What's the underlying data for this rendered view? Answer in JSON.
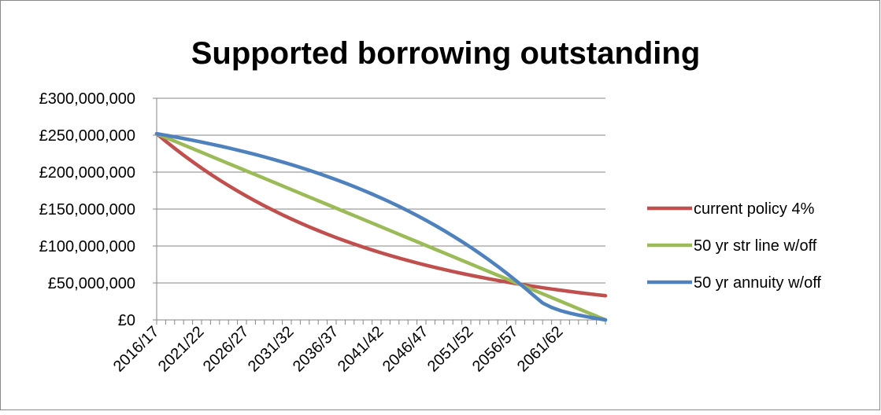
{
  "chart_data": {
    "type": "line",
    "title": "Supported borrowing outstanding",
    "xlabel": "",
    "ylabel": "",
    "ylim": [
      0,
      300000000
    ],
    "y_ticks": [
      {
        "value": 0,
        "label": "£0"
      },
      {
        "value": 50000000,
        "label": "£50,000,000"
      },
      {
        "value": 100000000,
        "label": "£100,000,000"
      },
      {
        "value": 150000000,
        "label": "£150,000,000"
      },
      {
        "value": 200000000,
        "label": "£200,000,000"
      },
      {
        "value": 250000000,
        "label": "£250,000,000"
      },
      {
        "value": 300000000,
        "label": "£300,000,000"
      }
    ],
    "categories": [
      "2016/17",
      "2017/18",
      "2018/19",
      "2019/20",
      "2020/21",
      "2021/22",
      "2022/23",
      "2023/24",
      "2024/25",
      "2025/26",
      "2026/27",
      "2027/28",
      "2028/29",
      "2029/30",
      "2030/31",
      "2031/32",
      "2032/33",
      "2033/34",
      "2034/35",
      "2035/36",
      "2036/37",
      "2037/38",
      "2038/39",
      "2039/40",
      "2040/41",
      "2041/42",
      "2042/43",
      "2043/44",
      "2044/45",
      "2045/46",
      "2046/47",
      "2047/48",
      "2048/49",
      "2049/50",
      "2050/51",
      "2051/52",
      "2052/53",
      "2053/54",
      "2054/55",
      "2055/56",
      "2056/57",
      "2057/58",
      "2058/59",
      "2059/60",
      "2060/61",
      "2061/62",
      "2062/63",
      "2063/64",
      "2064/65",
      "2065/66",
      "2066/67"
    ],
    "x_tick_labels": [
      "2016/17",
      "2021/22",
      "2026/27",
      "2031/32",
      "2036/37",
      "2041/42",
      "2046/47",
      "2051/52",
      "2056/57",
      "2061/62"
    ],
    "grid": true,
    "legend_position": "right",
    "series": [
      {
        "name": "current policy 4%",
        "color": "#C0504D",
        "values": [
          252000000,
          241920000,
          232243200,
          222953472,
          214035333,
          205473920,
          197254963,
          189364764,
          181790173,
          174518566,
          167537823,
          160836310,
          154402858,
          148226744,
          142297674,
          136605767,
          131141536,
          125895875,
          120860040,
          116025639,
          111384613,
          106929228,
          102652059,
          98545976,
          94604137,
          90819971,
          87187173,
          83699686,
          80351699,
          77137631,
          74052126,
          71090041,
          68246439,
          65516581,
          62895918,
          60380081,
          57964878,
          55646283,
          53420432,
          51283614,
          49232270,
          47262979,
          45372460,
          43557562,
          41815259,
          40142649,
          38536943,
          36995465,
          35515646,
          34095020,
          32731219
        ]
      },
      {
        "name": "50 yr str line w/off",
        "color": "#9BBB59",
        "values": [
          252000000,
          246960000,
          241920000,
          236880000,
          231840000,
          226800000,
          221760000,
          216720000,
          211680000,
          206640000,
          201600000,
          196560000,
          191520000,
          186480000,
          181440000,
          176400000,
          171360000,
          166320000,
          161280000,
          156240000,
          151200000,
          146160000,
          141120000,
          136080000,
          131040000,
          126000000,
          120960000,
          115920000,
          110880000,
          105840000,
          100800000,
          95760000,
          90720000,
          85680000,
          80640000,
          75600000,
          70560000,
          65520000,
          60480000,
          55440000,
          50400000,
          45360000,
          40320000,
          35280000,
          30240000,
          25200000,
          20160000,
          15120000,
          10080000,
          5040000,
          0
        ]
      },
      {
        "name": "50 yr annuity w/off",
        "color": "#4F81BD",
        "values": [
          252000000,
          249911000,
          247738000,
          245479000,
          243129000,
          240685000,
          238143000,
          235500000,
          232751000,
          229892000,
          226918000,
          223826000,
          220610000,
          217265000,
          213786000,
          210168000,
          206406000,
          202493000,
          198424000,
          194192000,
          189790000,
          185213000,
          180452000,
          175501000,
          170352000,
          164997000,
          159428000,
          153636000,
          147612000,
          141347000,
          134832000,
          128056000,
          121009000,
          113680000,
          106058000,
          98131000,
          89888000,
          81314000,
          72398000,
          63125000,
          53481000,
          43452000,
          33021000,
          22894000,
          16930000,
          12500000,
          9200000,
          6500000,
          4200000,
          2000000,
          0
        ]
      }
    ]
  }
}
